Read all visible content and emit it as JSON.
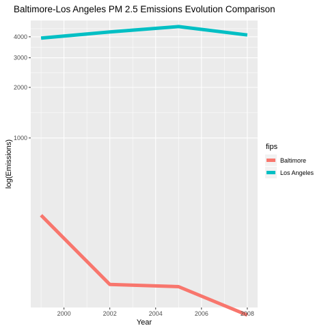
{
  "chart_data": {
    "type": "line",
    "title": "Baltimore-Los Angeles PM 2.5 Emissions Evolution Comparison",
    "xlabel": "Year",
    "ylabel": "log(Emissions)",
    "y_scale": "log10",
    "x": [
      1999,
      2002,
      2005,
      2008
    ],
    "x_ticks": [
      2000,
      2002,
      2004,
      2006,
      2008
    ],
    "x_tick_labels": [
      "2000",
      "2002",
      "2004",
      "2006",
      "2008"
    ],
    "y_ticks": [
      1000,
      2000,
      3000,
      4000
    ],
    "y_tick_labels": [
      "1000",
      "2000",
      "3000",
      "4000"
    ],
    "xlim": [
      1998.55,
      2008.45
    ],
    "ylim": [
      98,
      5000
    ],
    "grid": true,
    "legend": {
      "title": "fips",
      "position": "right"
    },
    "series": [
      {
        "name": "Baltimore",
        "color": "#F8766D",
        "values": [
          346.8,
          134.3,
          130.4,
          88.3
        ]
      },
      {
        "name": "Los Angeles",
        "color": "#00BFC4",
        "values": [
          3931.1,
          4274.0,
          4601.4,
          4101.3
        ]
      }
    ]
  }
}
